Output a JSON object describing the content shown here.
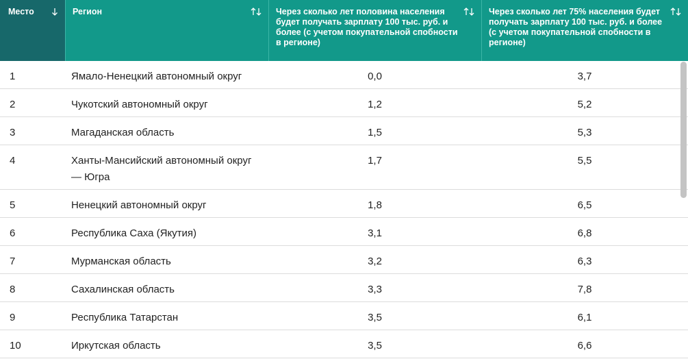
{
  "table": {
    "columns": [
      "Место",
      "Регион",
      "Через сколько лет половина населения будет получать зарплату 100 тыс. руб. и более (с учетом покупательной спобности в регионе)",
      "Через сколько лет 75% населения будет получать зарплату 100 тыс. руб. и более (с учетом покупательной спобности в регионе)"
    ],
    "rows": [
      [
        "1",
        "Ямало-Ненецкий автономный округ",
        "0,0",
        "3,7"
      ],
      [
        "2",
        "Чукотский автономный округ",
        "1,2",
        "5,2"
      ],
      [
        "3",
        "Магаданская область",
        "1,5",
        "5,3"
      ],
      [
        "4",
        "Ханты-Мансийский автономный округ — Югра",
        "1,7",
        "5,5"
      ],
      [
        "5",
        "Ненецкий автономный округ",
        "1,8",
        "6,5"
      ],
      [
        "6",
        "Республика Саха (Якутия)",
        "3,1",
        "6,8"
      ],
      [
        "7",
        "Мурманская область",
        "3,2",
        "6,3"
      ],
      [
        "8",
        "Сахалинская область",
        "3,3",
        "7,8"
      ],
      [
        "9",
        "Республика Татарстан",
        "3,5",
        "6,1"
      ],
      [
        "10",
        "Иркутская область",
        "3,5",
        "6,6"
      ]
    ]
  }
}
